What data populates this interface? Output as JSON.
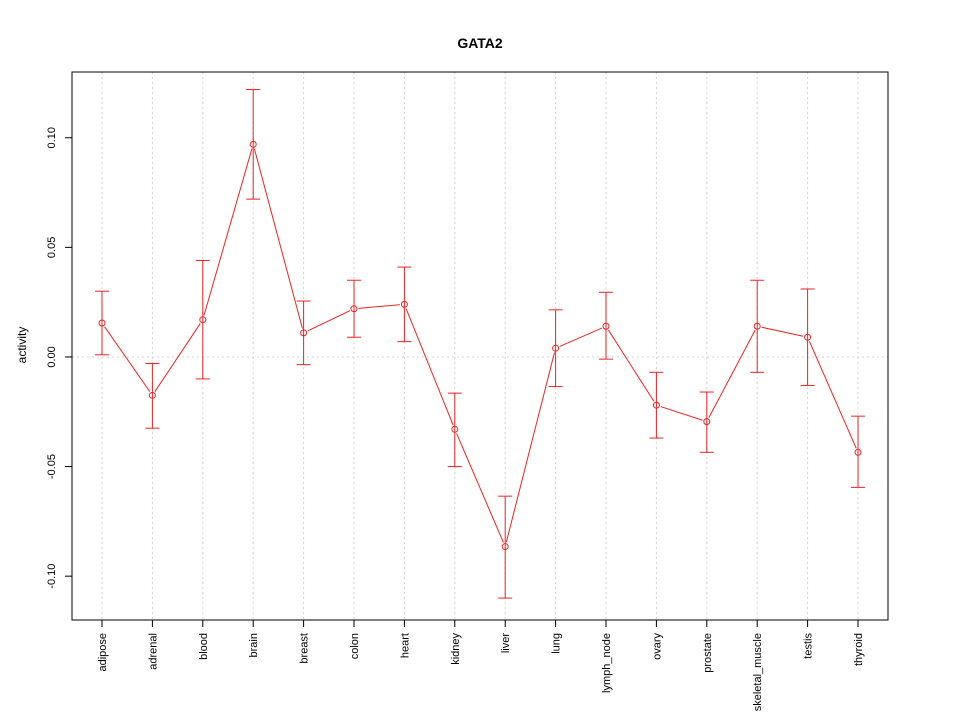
{
  "chart_data": {
    "type": "line",
    "title": "GATA2",
    "xlabel": "",
    "ylabel": "activity",
    "ylim": [
      -0.12,
      0.13
    ],
    "yticks": [
      -0.1,
      -0.05,
      0.0,
      0.05,
      0.1
    ],
    "ytick_labels": [
      "-0.10",
      "-0.05",
      "0.00",
      "0.05",
      "0.10"
    ],
    "grid": true,
    "error_bars": true,
    "series_color": "#ee2222",
    "grid_color": "#d3d3d3",
    "categories": [
      "adipose",
      "adrenal",
      "blood",
      "brain",
      "breast",
      "colon",
      "heart",
      "kidney",
      "liver",
      "lung",
      "lymph_node",
      "ovary",
      "prostate",
      "skeletal_muscle",
      "testis",
      "thyroid"
    ],
    "values": [
      0.0155,
      -0.0175,
      0.017,
      0.097,
      0.011,
      0.022,
      0.024,
      -0.033,
      -0.0865,
      0.004,
      0.014,
      -0.022,
      -0.0295,
      0.014,
      0.009,
      -0.0435
    ],
    "lower": [
      0.001,
      -0.0325,
      -0.01,
      0.072,
      -0.0035,
      0.009,
      0.007,
      -0.05,
      -0.11,
      -0.0135,
      -0.001,
      -0.037,
      -0.0435,
      -0.007,
      -0.013,
      -0.0595
    ],
    "upper": [
      0.03,
      -0.003,
      0.044,
      0.122,
      0.0255,
      0.035,
      0.041,
      -0.0165,
      -0.0635,
      0.0215,
      0.0295,
      -0.007,
      -0.016,
      0.035,
      0.031,
      -0.027
    ]
  }
}
